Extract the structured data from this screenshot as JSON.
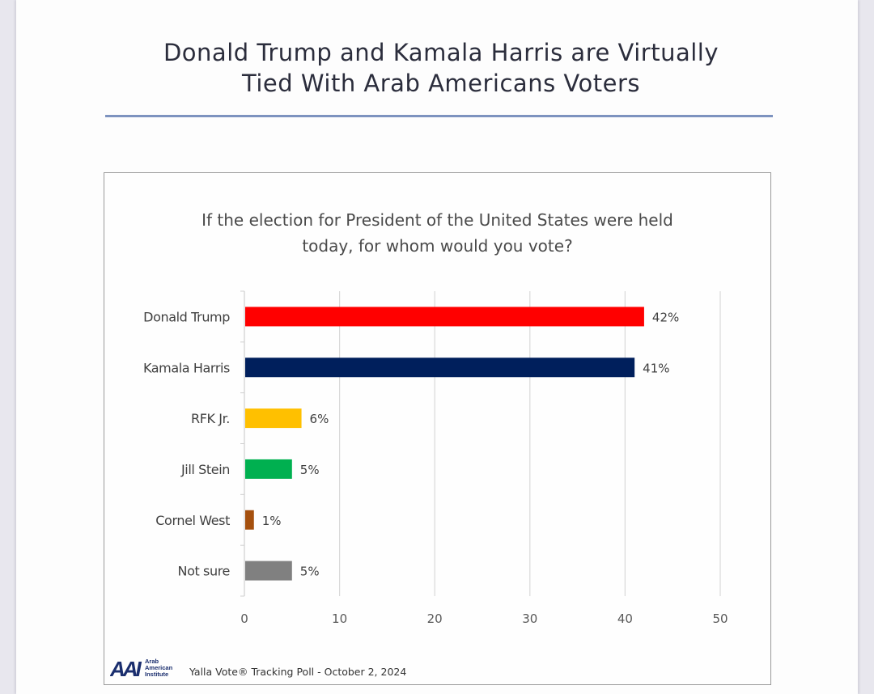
{
  "title": {
    "line1": "Donald Trump and Kamala Harris are Virtually",
    "line2": "Tied With Arab Americans Voters"
  },
  "colors": {
    "divider": "#7d93bf",
    "trump": "#ff0000",
    "harris": "#001f5c",
    "rfk": "#ffc000",
    "stein": "#00b050",
    "west": "#a5500e",
    "not_sure": "#808080"
  },
  "footer": {
    "logo_letters": "AAI",
    "logo_text": [
      "Arab",
      "American",
      "Institute"
    ],
    "source": "Yalla Vote® Tracking Poll - October 2, 2024"
  },
  "chart_data": {
    "type": "bar",
    "orientation": "horizontal",
    "title": "If the election for President of the United States were held today, for whom would you vote?",
    "title_lines": [
      "If the election for President of the United States were held",
      "today, for whom would you vote?"
    ],
    "categories": [
      "Donald Trump",
      "Kamala Harris",
      "RFK Jr.",
      "Jill Stein",
      "Cornel West",
      "Not sure"
    ],
    "values": [
      42,
      41,
      6,
      5,
      1,
      5
    ],
    "data_labels": [
      "42%",
      "41%",
      "6%",
      "5%",
      "1%",
      "5%"
    ],
    "bar_colors": [
      "#ff0000",
      "#001f5c",
      "#ffc000",
      "#00b050",
      "#a5500e",
      "#808080"
    ],
    "xlabel": "",
    "ylabel": "",
    "xlim": [
      0,
      50
    ],
    "xticks": [
      0,
      10,
      20,
      30,
      40,
      50
    ],
    "xtick_labels": [
      "0",
      "10",
      "20",
      "30",
      "40",
      "50"
    ],
    "grid": "vertical",
    "legend": "none"
  }
}
